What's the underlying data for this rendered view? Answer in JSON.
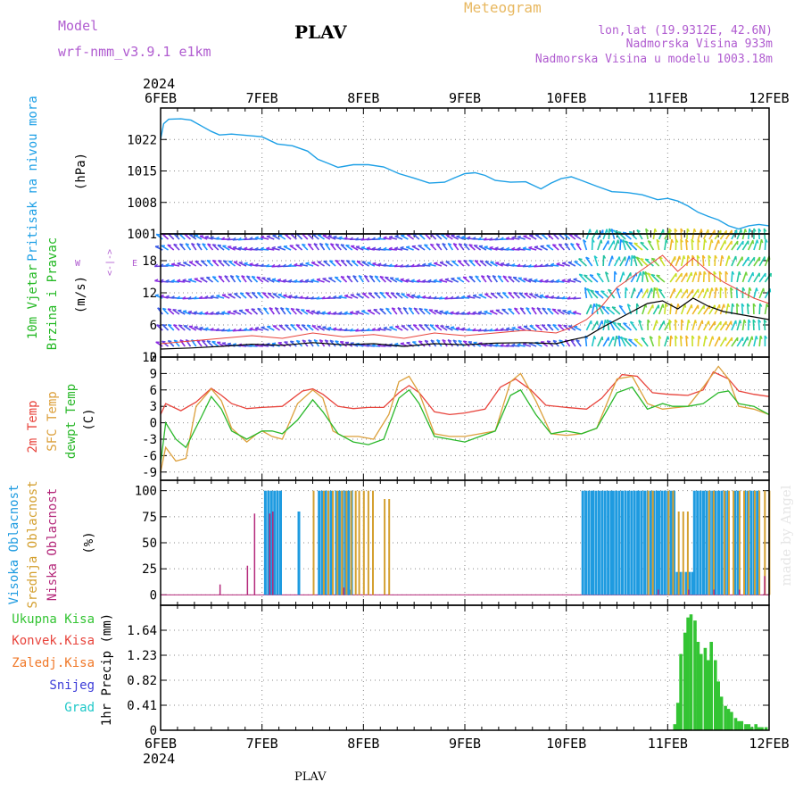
{
  "header": {
    "model_label": "Model",
    "model_name": "wrf-nmm_v3.9.1  e1km",
    "station": "PLAV",
    "meteogram_label": "Meteogram",
    "lonlat": "lon,lat (19.9312E, 42.6N)",
    "altitude": "Nadmorska Visina 933m",
    "model_altitude": "Nadmorska Visina u modelu 1003.18m",
    "watermark": "made by Angel",
    "footer_station": "PLAV"
  },
  "time_axis": {
    "year": "2024",
    "labels": [
      "6FEB",
      "7FEB",
      "8FEB",
      "9FEB",
      "10FEB",
      "11FEB",
      "12FEB"
    ]
  },
  "colors": {
    "pressure": "#1ea0e6",
    "t2m": "#e8443c",
    "tsfc": "#dca03c",
    "dewpt": "#2ab82a",
    "high_cloud": "#1e9be0",
    "mid_cloud": "#d4a030",
    "low_cloud": "#b4287a",
    "precip_total": "#33c433",
    "convective": "#e8443c",
    "freezing": "#f07828",
    "snow": "#3c3cd8",
    "graupel": "#1ec8c8",
    "wind_label": "#22b822"
  },
  "chart_data": [
    {
      "id": "pressure",
      "type": "line",
      "ylabel_left": "Pritisak na nivou mora",
      "ylabel_unit": "(hPa)",
      "ylim": [
        1001,
        1029
      ],
      "yticks": [
        "1001",
        "1008",
        "1015",
        "1022"
      ],
      "grid": true,
      "x_days": [
        0,
        0.03,
        0.08,
        0.2,
        0.3,
        0.42,
        0.5,
        0.58,
        0.7,
        0.85,
        1.0,
        1.15,
        1.3,
        1.45,
        1.55,
        1.65,
        1.75,
        1.9,
        2.05,
        2.2,
        2.35,
        2.5,
        2.65,
        2.8,
        2.9,
        3.0,
        3.1,
        3.2,
        3.3,
        3.45,
        3.6,
        3.75,
        3.85,
        3.95,
        4.05,
        4.15,
        4.3,
        4.45,
        4.6,
        4.75,
        4.9,
        5.0,
        5.1,
        5.2,
        5.3,
        5.4,
        5.5,
        5.6,
        5.7,
        5.8,
        5.9,
        6.0
      ],
      "values": [
        1022,
        1025.5,
        1026.5,
        1026.6,
        1026.3,
        1024.8,
        1023.8,
        1023.0,
        1023.2,
        1022.9,
        1022.6,
        1021.0,
        1020.6,
        1019.4,
        1017.6,
        1016.7,
        1015.8,
        1016.4,
        1016.4,
        1015.9,
        1014.4,
        1013.4,
        1012.3,
        1012.5,
        1013.5,
        1014.4,
        1014.6,
        1014.0,
        1012.9,
        1012.5,
        1012.6,
        1011.0,
        1012.3,
        1013.3,
        1013.7,
        1012.9,
        1011.6,
        1010.4,
        1010.2,
        1009.7,
        1008.6,
        1008.9,
        1008.3,
        1007.2,
        1005.8,
        1004.9,
        1004.1,
        1002.8,
        1002.1,
        1002.8,
        1003.1,
        1002.8
      ]
    },
    {
      "id": "wind",
      "type": "line",
      "ylabel_left": "10m Vjetar",
      "ylabel_left2": "Brzina i Pravac",
      "ylabel_unit": "(m/s)",
      "compass_ns": "<-|->",
      "compass_w": "W",
      "compass_e": "E",
      "ylim": [
        0,
        23
      ],
      "yticks": [
        "0",
        "6",
        "12",
        "18"
      ],
      "grid": true,
      "x_days": [
        0,
        0.3,
        0.6,
        0.9,
        1.2,
        1.5,
        1.8,
        2.1,
        2.4,
        2.7,
        3.0,
        3.3,
        3.6,
        3.9,
        4.05,
        4.2,
        4.35,
        4.5,
        4.65,
        4.8,
        4.95,
        5.1,
        5.25,
        5.4,
        5.55,
        5.7,
        5.85,
        6.0
      ],
      "mean_speed": [
        1.5,
        1.7,
        2.0,
        2.4,
        2.2,
        2.7,
        2.3,
        2.5,
        2.0,
        2.5,
        2.3,
        2.6,
        2.7,
        2.5,
        3.2,
        3.8,
        5.5,
        7.0,
        8.5,
        10.0,
        10.5,
        9.0,
        11.0,
        9.5,
        8.5,
        8.0,
        7.5,
        7.0
      ],
      "gust_speed": [
        2.5,
        3.0,
        3.5,
        4.0,
        3.5,
        4.5,
        3.8,
        4.2,
        3.5,
        4.5,
        4.0,
        4.5,
        5.0,
        4.5,
        5.5,
        7.0,
        9.5,
        13.0,
        15.0,
        17.0,
        19.0,
        16.0,
        18.5,
        16.0,
        14.0,
        12.5,
        11.0,
        10.0
      ]
    },
    {
      "id": "temperature",
      "type": "line",
      "series_labels": [
        "2m Temp",
        "SFC Temp",
        "dewpt Temp"
      ],
      "ylabel_unit": "(C)",
      "ylim": [
        -10.5,
        12
      ],
      "yticks": [
        "-9",
        "-6",
        "-3",
        "0",
        "3",
        "6",
        "9",
        "12"
      ],
      "grid": true,
      "series": [
        {
          "name": "2m Temp",
          "x": [
            0,
            0.05,
            0.2,
            0.35,
            0.5,
            0.6,
            0.7,
            0.85,
            1.0,
            1.2,
            1.4,
            1.5,
            1.6,
            1.75,
            1.9,
            2.05,
            2.2,
            2.35,
            2.45,
            2.55,
            2.7,
            2.85,
            3.0,
            3.2,
            3.35,
            3.5,
            3.65,
            3.8,
            4.0,
            4.2,
            4.35,
            4.55,
            4.7,
            4.85,
            5.0,
            5.1,
            5.2,
            5.35,
            5.45,
            5.6,
            5.7,
            5.85,
            6.0
          ],
          "y": [
            1.5,
            3.5,
            2.2,
            3.8,
            6.3,
            5.0,
            3.5,
            2.6,
            2.8,
            3.0,
            5.8,
            6.2,
            5.2,
            3.0,
            2.6,
            2.8,
            2.8,
            5.5,
            6.8,
            5.5,
            2.0,
            1.5,
            1.8,
            2.5,
            6.5,
            8.0,
            6.0,
            3.2,
            2.8,
            2.5,
            4.5,
            8.8,
            8.5,
            5.5,
            5.2,
            5.1,
            5.0,
            6.0,
            9.3,
            8.0,
            5.8,
            5.2,
            4.8
          ]
        },
        {
          "name": "SFC Temp",
          "x": [
            0,
            0.05,
            0.15,
            0.25,
            0.35,
            0.5,
            0.6,
            0.7,
            0.85,
            0.95,
            1.0,
            1.1,
            1.2,
            1.35,
            1.5,
            1.6,
            1.7,
            1.8,
            1.95,
            2.1,
            2.25,
            2.35,
            2.45,
            2.55,
            2.7,
            2.85,
            3.0,
            3.15,
            3.3,
            3.45,
            3.55,
            3.7,
            3.85,
            4.0,
            4.15,
            4.3,
            4.5,
            4.65,
            4.8,
            4.95,
            5.05,
            5.2,
            5.35,
            5.5,
            5.6,
            5.7,
            5.85,
            6.0
          ],
          "y": [
            -9,
            -4.5,
            -7,
            -6.5,
            3.0,
            6.2,
            4.0,
            -1.0,
            -3.5,
            -2.0,
            -1.5,
            -2.5,
            -3.0,
            3.5,
            6.0,
            4.5,
            -1.5,
            -2.5,
            -2.5,
            -3.0,
            1.5,
            7.5,
            8.5,
            5.5,
            -2.0,
            -2.5,
            -2.5,
            -2.0,
            -1.5,
            7.5,
            9.0,
            4.0,
            -2.0,
            -2.3,
            -2.0,
            -1.0,
            8.0,
            8.5,
            3.5,
            2.5,
            2.7,
            3.0,
            6.5,
            10.3,
            8.0,
            3.0,
            2.5,
            1.5
          ]
        },
        {
          "name": "dewpt Temp",
          "x": [
            0,
            0.05,
            0.15,
            0.25,
            0.4,
            0.5,
            0.6,
            0.7,
            0.85,
            1.0,
            1.1,
            1.2,
            1.35,
            1.5,
            1.6,
            1.75,
            1.9,
            2.05,
            2.2,
            2.35,
            2.45,
            2.55,
            2.7,
            2.85,
            3.0,
            3.15,
            3.3,
            3.45,
            3.55,
            3.7,
            3.85,
            4.0,
            4.15,
            4.3,
            4.5,
            4.65,
            4.8,
            4.95,
            5.05,
            5.2,
            5.35,
            5.5,
            5.6,
            5.7,
            5.85,
            6.0
          ],
          "y": [
            -7.5,
            0,
            -3.0,
            -4.5,
            1.0,
            4.8,
            2.5,
            -1.5,
            -3.0,
            -1.5,
            -1.5,
            -2.0,
            0.5,
            4.2,
            2.0,
            -2.0,
            -3.5,
            -4.0,
            -3.0,
            4.5,
            6.0,
            3.5,
            -2.5,
            -3.0,
            -3.5,
            -2.5,
            -1.5,
            5.0,
            6.0,
            1.5,
            -2.0,
            -1.5,
            -2.0,
            -1.0,
            5.5,
            6.5,
            2.5,
            3.5,
            3.0,
            3.0,
            3.5,
            5.5,
            5.8,
            3.5,
            3.0,
            1.5
          ]
        }
      ]
    },
    {
      "id": "cloud",
      "type": "bar",
      "series_labels": [
        "Visoka Oblacnost",
        "Srednja Oblacnost",
        "Niska Oblacnost"
      ],
      "ylabel_unit": "(%)",
      "ylim": [
        0,
        100
      ],
      "yticks": [
        "0",
        "25",
        "50",
        "75",
        "100"
      ],
      "grid": true,
      "high_cloud": [
        [
          1.02,
          1.18,
          100
        ],
        [
          1.35,
          1.38,
          80
        ],
        [
          1.55,
          1.7,
          100
        ],
        [
          1.72,
          1.9,
          100
        ],
        [
          1.85,
          1.87,
          5
        ],
        [
          4.15,
          4.25,
          100
        ],
        [
          4.25,
          4.45,
          100
        ],
        [
          4.45,
          4.7,
          100
        ],
        [
          4.7,
          4.9,
          100
        ],
        [
          4.9,
          5.08,
          100
        ],
        [
          5.08,
          5.25,
          22
        ],
        [
          5.25,
          5.35,
          100
        ],
        [
          5.37,
          5.6,
          100
        ],
        [
          5.65,
          5.7,
          100
        ],
        [
          5.75,
          5.9,
          100
        ]
      ],
      "mid_cloud": [
        [
          1.5,
          1.53,
          100
        ],
        [
          1.6,
          1.78,
          100
        ],
        [
          1.78,
          1.95,
          100
        ],
        [
          1.95,
          2.1,
          100
        ],
        [
          2.2,
          2.25,
          92
        ],
        [
          4.8,
          4.85,
          100
        ],
        [
          5.0,
          5.05,
          100
        ],
        [
          5.1,
          5.2,
          80
        ],
        [
          5.4,
          5.45,
          100
        ],
        [
          5.55,
          5.65,
          100
        ],
        [
          5.7,
          5.8,
          100
        ],
        [
          5.85,
          5.92,
          100
        ],
        [
          5.95,
          6.0,
          100
        ]
      ],
      "low_cloud": [
        [
          0.58,
          10
        ],
        [
          0.85,
          28
        ],
        [
          0.92,
          78
        ],
        [
          1.07,
          78
        ],
        [
          1.1,
          80
        ],
        [
          1.8,
          7
        ],
        [
          4.9,
          5
        ],
        [
          5.2,
          5
        ],
        [
          5.45,
          5
        ],
        [
          5.7,
          5
        ],
        [
          5.95,
          18
        ]
      ]
    },
    {
      "id": "precip",
      "type": "bar",
      "series_labels": [
        "Ukupna Kisa",
        "Konvek.Kisa",
        "Zaledj.Kisa",
        "Snijeg",
        "Grad"
      ],
      "ylabel_unit": "1hr Precip (mm)",
      "ylim": [
        0,
        2.05
      ],
      "yticks": [
        "0",
        "0.41",
        "0.82",
        "1.23",
        "1.64"
      ],
      "grid": true,
      "x_days": [
        5.07,
        5.1,
        5.13,
        5.17,
        5.2,
        5.23,
        5.27,
        5.3,
        5.33,
        5.37,
        5.4,
        5.43,
        5.47,
        5.5,
        5.53,
        5.57,
        5.6,
        5.63,
        5.67,
        5.7,
        5.73,
        5.77,
        5.8,
        5.83,
        5.87,
        5.9,
        5.93,
        5.97
      ],
      "values": [
        0.1,
        0.45,
        1.25,
        1.6,
        1.85,
        1.9,
        1.8,
        1.45,
        1.25,
        1.35,
        1.15,
        1.45,
        1.15,
        0.8,
        0.55,
        0.4,
        0.35,
        0.3,
        0.2,
        0.15,
        0.15,
        0.1,
        0.1,
        0.05,
        0.1,
        0.05,
        0.05,
        0.05
      ]
    }
  ]
}
